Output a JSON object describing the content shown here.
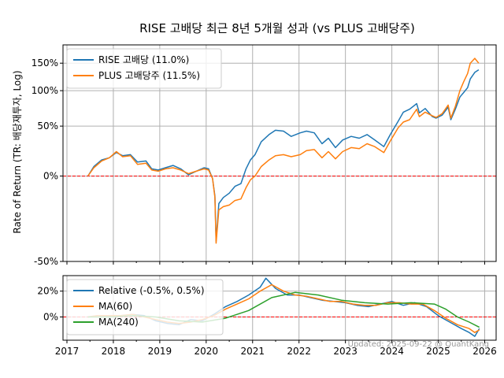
{
  "chart_data": [
    {
      "type": "line",
      "title": "RISE 고배당 최근 8년 5개월 성과 (vs PLUS 고배당주)",
      "ylabel": "Rate of Return (TR: 배당재투자, Log)",
      "yscale": "log(1+r)",
      "ylim": [
        -50,
        190
      ],
      "yticks": [
        {
          "value": 150,
          "label": "150%"
        },
        {
          "value": 100,
          "label": "100%"
        },
        {
          "value": 50,
          "label": "50%"
        },
        {
          "value": 0,
          "label": "0%"
        },
        {
          "value": -50,
          "label": "-50%"
        }
      ],
      "xlim": [
        "2016-12-01",
        "2026-04-01"
      ],
      "grid": true,
      "reference_line": {
        "y": 0,
        "style": "red dashed"
      },
      "legend_position": "top-left",
      "series": [
        {
          "name": "RISE 고배당 (11.0%)",
          "color": "#1f77b4",
          "points": [
            [
              "2017-06-15",
              0
            ],
            [
              "2017-08-01",
              8
            ],
            [
              "2017-10-01",
              14
            ],
            [
              "2017-12-01",
              16
            ],
            [
              "2018-01-25",
              21
            ],
            [
              "2018-03-15",
              18
            ],
            [
              "2018-05-15",
              19
            ],
            [
              "2018-07-10",
              12
            ],
            [
              "2018-09-15",
              13
            ],
            [
              "2018-10-30",
              6
            ],
            [
              "2018-12-20",
              5
            ],
            [
              "2019-02-15",
              7
            ],
            [
              "2019-04-15",
              9
            ],
            [
              "2019-06-15",
              6
            ],
            [
              "2019-08-15",
              1
            ],
            [
              "2019-10-15",
              4
            ],
            [
              "2019-12-15",
              7
            ],
            [
              "2020-01-20",
              6
            ],
            [
              "2020-02-20",
              -2
            ],
            [
              "2020-03-10",
              -15
            ],
            [
              "2020-03-19",
              -41
            ],
            [
              "2020-04-10",
              -20
            ],
            [
              "2020-05-15",
              -16
            ],
            [
              "2020-07-01",
              -13
            ],
            [
              "2020-08-15",
              -8
            ],
            [
              "2020-10-01",
              -6
            ],
            [
              "2020-11-10",
              6
            ],
            [
              "2020-12-15",
              14
            ],
            [
              "2021-01-20",
              19
            ],
            [
              "2021-03-10",
              32
            ],
            [
              "2021-05-10",
              40
            ],
            [
              "2021-06-30",
              45
            ],
            [
              "2021-09-01",
              44
            ],
            [
              "2021-11-01",
              38
            ],
            [
              "2022-01-10",
              42
            ],
            [
              "2022-03-01",
              44
            ],
            [
              "2022-05-01",
              42
            ],
            [
              "2022-07-01",
              30
            ],
            [
              "2022-08-20",
              36
            ],
            [
              "2022-10-15",
              26
            ],
            [
              "2022-12-10",
              34
            ],
            [
              "2023-02-15",
              38
            ],
            [
              "2023-04-20",
              36
            ],
            [
              "2023-06-20",
              40
            ],
            [
              "2023-08-20",
              34
            ],
            [
              "2023-10-30",
              27
            ],
            [
              "2023-12-20",
              40
            ],
            [
              "2024-02-20",
              56
            ],
            [
              "2024-04-01",
              68
            ],
            [
              "2024-05-20",
              72
            ],
            [
              "2024-07-15",
              80
            ],
            [
              "2024-08-05",
              67
            ],
            [
              "2024-09-20",
              73
            ],
            [
              "2024-11-15",
              62
            ],
            [
              "2024-12-15",
              60
            ],
            [
              "2025-02-01",
              64
            ],
            [
              "2025-03-20",
              75
            ],
            [
              "2025-04-10",
              58
            ],
            [
              "2025-05-15",
              72
            ],
            [
              "2025-06-20",
              90
            ],
            [
              "2025-07-20",
              97
            ],
            [
              "2025-08-20",
              105
            ],
            [
              "2025-09-10",
              120
            ],
            [
              "2025-10-15",
              132
            ],
            [
              "2025-11-15",
              137
            ]
          ]
        },
        {
          "name": "PLUS 고배당주 (11.5%)",
          "color": "#ff7f0e",
          "points": [
            [
              "2017-06-15",
              0
            ],
            [
              "2017-08-01",
              7
            ],
            [
              "2017-10-01",
              13
            ],
            [
              "2017-12-01",
              16
            ],
            [
              "2018-01-25",
              22
            ],
            [
              "2018-03-15",
              17
            ],
            [
              "2018-05-15",
              18
            ],
            [
              "2018-07-10",
              10
            ],
            [
              "2018-09-15",
              11
            ],
            [
              "2018-10-30",
              5
            ],
            [
              "2018-12-20",
              4
            ],
            [
              "2019-02-15",
              6
            ],
            [
              "2019-04-15",
              7
            ],
            [
              "2019-06-15",
              5
            ],
            [
              "2019-08-15",
              2
            ],
            [
              "2019-10-15",
              4
            ],
            [
              "2019-12-15",
              6
            ],
            [
              "2020-01-20",
              5
            ],
            [
              "2020-02-20",
              -2
            ],
            [
              "2020-03-10",
              -16
            ],
            [
              "2020-03-19",
              -42
            ],
            [
              "2020-04-10",
              -24
            ],
            [
              "2020-05-15",
              -22
            ],
            [
              "2020-07-01",
              -21
            ],
            [
              "2020-08-15",
              -18
            ],
            [
              "2020-10-01",
              -17
            ],
            [
              "2020-11-10",
              -9
            ],
            [
              "2020-12-15",
              -3
            ],
            [
              "2021-01-20",
              0
            ],
            [
              "2021-03-10",
              8
            ],
            [
              "2021-05-10",
              14
            ],
            [
              "2021-06-30",
              18
            ],
            [
              "2021-09-01",
              19
            ],
            [
              "2021-11-01",
              17
            ],
            [
              "2022-01-10",
              19
            ],
            [
              "2022-03-01",
              23
            ],
            [
              "2022-05-01",
              24
            ],
            [
              "2022-07-01",
              16
            ],
            [
              "2022-08-20",
              22
            ],
            [
              "2022-10-15",
              15
            ],
            [
              "2022-12-10",
              22
            ],
            [
              "2023-02-15",
              26
            ],
            [
              "2023-04-20",
              25
            ],
            [
              "2023-06-20",
              30
            ],
            [
              "2023-08-20",
              27
            ],
            [
              "2023-10-30",
              21
            ],
            [
              "2023-12-20",
              33
            ],
            [
              "2024-02-20",
              48
            ],
            [
              "2024-04-01",
              55
            ],
            [
              "2024-05-20",
              58
            ],
            [
              "2024-07-15",
              72
            ],
            [
              "2024-08-05",
              62
            ],
            [
              "2024-09-20",
              68
            ],
            [
              "2024-11-15",
              63
            ],
            [
              "2024-12-15",
              61
            ],
            [
              "2025-02-01",
              66
            ],
            [
              "2025-03-20",
              78
            ],
            [
              "2025-04-10",
              60
            ],
            [
              "2025-05-15",
              76
            ],
            [
              "2025-06-20",
              100
            ],
            [
              "2025-07-20",
              115
            ],
            [
              "2025-08-20",
              130
            ],
            [
              "2025-09-10",
              150
            ],
            [
              "2025-10-15",
              160
            ],
            [
              "2025-11-15",
              150
            ]
          ]
        }
      ]
    },
    {
      "type": "line",
      "ylim": [
        -18,
        32
      ],
      "yticks": [
        {
          "value": 20,
          "label": "20%"
        },
        {
          "value": 0,
          "label": "0%"
        }
      ],
      "xticks": [
        "2017",
        "2018",
        "2019",
        "2020",
        "2021",
        "2022",
        "2023",
        "2024",
        "2025",
        "2026"
      ],
      "xlim": [
        "2016-12-01",
        "2026-04-01"
      ],
      "grid": true,
      "reference_line": {
        "y": 0,
        "style": "red dashed"
      },
      "legend_position": "top-left",
      "series": [
        {
          "name": "Relative (-0.5%, 0.5%)",
          "color": "#1f77b4",
          "points": [
            [
              "2017-06-15",
              0
            ],
            [
              "2017-09-01",
              1
            ],
            [
              "2017-12-01",
              0
            ],
            [
              "2018-03-01",
              1
            ],
            [
              "2018-06-01",
              2
            ],
            [
              "2018-09-01",
              1
            ],
            [
              "2018-12-01",
              -3
            ],
            [
              "2019-03-01",
              -5
            ],
            [
              "2019-06-01",
              -6
            ],
            [
              "2019-09-01",
              -2
            ],
            [
              "2019-12-01",
              -3
            ],
            [
              "2020-03-01",
              2
            ],
            [
              "2020-06-01",
              8
            ],
            [
              "2020-09-01",
              12
            ],
            [
              "2020-12-01",
              17
            ],
            [
              "2021-03-01",
              23
            ],
            [
              "2021-04-15",
              30
            ],
            [
              "2021-07-01",
              22
            ],
            [
              "2021-10-01",
              17
            ],
            [
              "2022-01-01",
              17
            ],
            [
              "2022-04-01",
              15
            ],
            [
              "2022-07-01",
              13
            ],
            [
              "2022-10-01",
              12
            ],
            [
              "2023-01-01",
              11
            ],
            [
              "2023-04-01",
              9
            ],
            [
              "2023-07-01",
              8
            ],
            [
              "2023-10-01",
              10
            ],
            [
              "2024-01-01",
              12
            ],
            [
              "2024-04-01",
              9
            ],
            [
              "2024-07-01",
              11
            ],
            [
              "2024-10-01",
              8
            ],
            [
              "2025-01-01",
              1
            ],
            [
              "2025-04-01",
              -4
            ],
            [
              "2025-07-01",
              -9
            ],
            [
              "2025-09-01",
              -12
            ],
            [
              "2025-10-15",
              -15
            ],
            [
              "2025-11-20",
              -9
            ]
          ]
        },
        {
          "name": "MA(60)",
          "color": "#ff7f0e",
          "points": [
            [
              "2017-06-15",
              0
            ],
            [
              "2017-09-01",
              1
            ],
            [
              "2017-12-01",
              1
            ],
            [
              "2018-03-01",
              1
            ],
            [
              "2018-06-01",
              2
            ],
            [
              "2018-09-01",
              0
            ],
            [
              "2018-12-01",
              -2
            ],
            [
              "2019-03-01",
              -4
            ],
            [
              "2019-06-01",
              -5
            ],
            [
              "2019-09-01",
              -4
            ],
            [
              "2019-12-01",
              -2
            ],
            [
              "2020-03-01",
              1
            ],
            [
              "2020-06-01",
              6
            ],
            [
              "2020-09-01",
              10
            ],
            [
              "2020-12-01",
              14
            ],
            [
              "2021-03-01",
              20
            ],
            [
              "2021-06-01",
              25
            ],
            [
              "2021-09-01",
              20
            ],
            [
              "2021-12-01",
              17
            ],
            [
              "2022-03-01",
              16
            ],
            [
              "2022-06-01",
              14
            ],
            [
              "2022-09-01",
              12
            ],
            [
              "2022-12-01",
              12
            ],
            [
              "2023-03-01",
              10
            ],
            [
              "2023-06-01",
              9
            ],
            [
              "2023-09-01",
              9
            ],
            [
              "2023-12-01",
              11
            ],
            [
              "2024-03-01",
              11
            ],
            [
              "2024-06-01",
              10
            ],
            [
              "2024-09-01",
              10
            ],
            [
              "2024-12-01",
              5
            ],
            [
              "2025-03-01",
              -1
            ],
            [
              "2025-06-01",
              -6
            ],
            [
              "2025-09-01",
              -9
            ],
            [
              "2025-10-15",
              -12
            ],
            [
              "2025-11-20",
              -10
            ]
          ]
        },
        {
          "name": "MA(240)",
          "color": "#2ca02c",
          "points": [
            [
              "2017-06-15",
              0
            ],
            [
              "2017-12-01",
              0
            ],
            [
              "2018-06-01",
              1
            ],
            [
              "2018-12-01",
              0
            ],
            [
              "2019-06-01",
              -3
            ],
            [
              "2019-12-01",
              -4
            ],
            [
              "2020-06-01",
              -1
            ],
            [
              "2020-12-01",
              5
            ],
            [
              "2021-06-01",
              15
            ],
            [
              "2021-12-01",
              19
            ],
            [
              "2022-06-01",
              17
            ],
            [
              "2022-12-01",
              13
            ],
            [
              "2023-06-01",
              11
            ],
            [
              "2023-12-01",
              10
            ],
            [
              "2024-06-01",
              11
            ],
            [
              "2024-12-01",
              10
            ],
            [
              "2025-03-01",
              6
            ],
            [
              "2025-06-01",
              0
            ],
            [
              "2025-09-01",
              -4
            ],
            [
              "2025-11-20",
              -8
            ]
          ]
        }
      ]
    }
  ],
  "footnote": "Updated: 2025-09-22 @ QuantKang"
}
